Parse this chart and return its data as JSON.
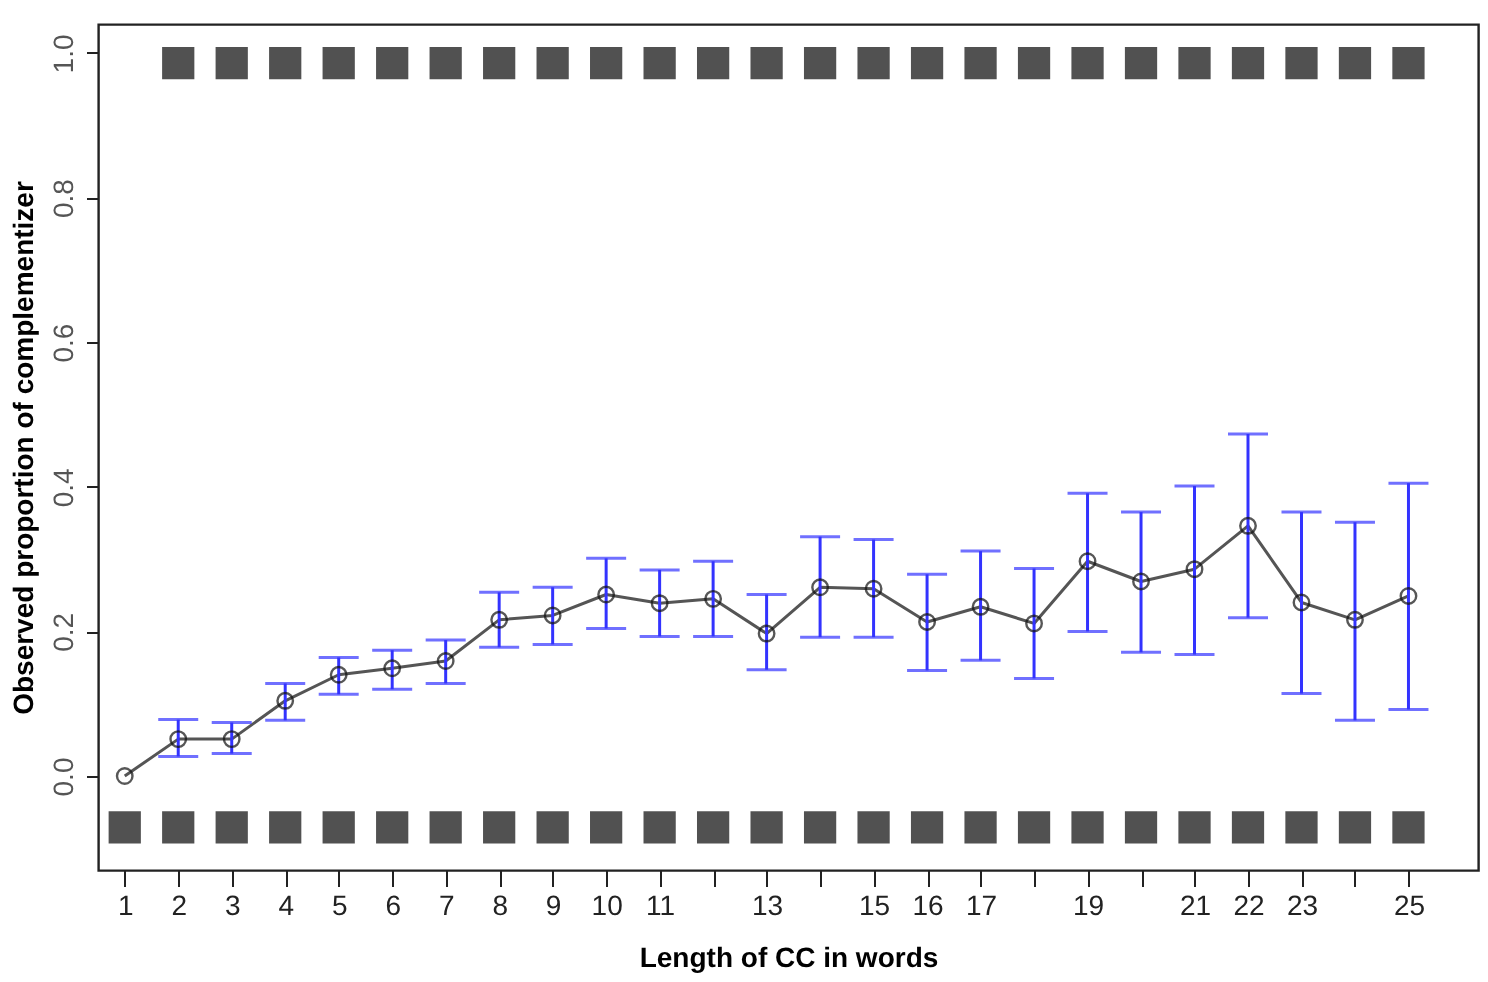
{
  "chart_data": {
    "type": "line",
    "xlabel": "Length of CC in words",
    "ylabel": "Observed proportion of complementizer",
    "xlim": [
      0.5,
      26.3
    ],
    "ylim": [
      -0.13,
      1.04
    ],
    "xticks": [
      1,
      2,
      3,
      4,
      5,
      6,
      7,
      8,
      9,
      10,
      11,
      {
        "value": 12,
        "label": null
      },
      13,
      {
        "value": 14,
        "label": null
      },
      15,
      16,
      17,
      {
        "value": 18,
        "label": null
      },
      19,
      {
        "value": 20,
        "label": null
      },
      21,
      22,
      23,
      {
        "value": 24,
        "label": null
      },
      25
    ],
    "yticks": [
      {
        "value": 0,
        "label": "0.0"
      },
      0.2,
      0.4,
      0.6,
      0.8,
      {
        "value": 1,
        "label": "1.0"
      }
    ],
    "grid": false,
    "series": [
      {
        "color": "#555555",
        "marker": "circle",
        "line_style": "solid",
        "x": [
          1,
          2,
          3,
          4,
          5,
          6,
          7,
          8,
          9,
          10,
          11,
          12,
          13,
          14,
          15,
          16,
          17,
          18,
          19,
          20,
          21,
          22,
          23,
          24,
          25
        ],
        "values": [
          0.0,
          0.051,
          0.051,
          0.104,
          0.14,
          0.149,
          0.159,
          0.216,
          0.222,
          0.251,
          0.239,
          0.245,
          0.197,
          0.261,
          0.259,
          0.213,
          0.234,
          0.211,
          0.297,
          0.269,
          0.286,
          0.346,
          0.24,
          0.216,
          0.249
        ],
        "errors": [
          null,
          [
            0.027,
            0.078
          ],
          [
            0.031,
            0.074
          ],
          [
            0.077,
            0.128
          ],
          [
            0.113,
            0.164
          ],
          [
            0.12,
            0.174
          ],
          [
            0.128,
            0.188
          ],
          [
            0.178,
            0.254
          ],
          [
            0.182,
            0.261
          ],
          [
            0.204,
            0.301
          ],
          [
            0.193,
            0.285
          ],
          [
            0.193,
            0.297
          ],
          [
            0.147,
            0.251
          ],
          [
            0.192,
            0.331
          ],
          [
            0.192,
            0.327
          ],
          [
            0.146,
            0.279
          ],
          [
            0.16,
            0.311
          ],
          [
            0.135,
            0.287
          ],
          [
            0.2,
            0.391
          ],
          [
            0.171,
            0.365
          ],
          [
            0.168,
            0.401
          ],
          [
            0.219,
            0.473
          ],
          [
            0.114,
            0.365
          ],
          [
            0.077,
            0.351
          ],
          [
            0.092,
            0.405
          ]
        ]
      },
      {
        "type": "scatter",
        "color": "#333333",
        "marker": "square",
        "x": [
          1,
          2,
          3,
          4,
          5,
          6,
          7,
          8,
          9,
          10,
          11,
          12,
          13,
          14,
          15,
          16,
          17,
          18,
          19,
          20,
          21,
          22,
          23,
          24,
          25
        ],
        "values": [
          -0.071,
          -0.071,
          -0.071,
          -0.071,
          -0.071,
          -0.071,
          -0.071,
          -0.071,
          -0.071,
          -0.071,
          -0.071,
          -0.071,
          -0.071,
          -0.071,
          -0.071,
          -0.071,
          -0.071,
          -0.071,
          -0.071,
          -0.071,
          -0.071,
          -0.071,
          -0.071,
          -0.071,
          -0.071
        ]
      },
      {
        "type": "scatter",
        "color": "#333333",
        "marker": "square",
        "x": [
          2,
          3,
          4,
          5,
          6,
          7,
          8,
          9,
          10,
          11,
          12,
          13,
          14,
          15,
          16,
          17,
          18,
          19,
          20,
          21,
          22,
          23,
          24,
          25
        ],
        "values": [
          0.986,
          0.986,
          0.986,
          0.986,
          0.986,
          0.986,
          0.986,
          0.986,
          0.986,
          0.986,
          0.986,
          0.986,
          0.986,
          0.986,
          0.986,
          0.986,
          0.986,
          0.986,
          0.986,
          0.986,
          0.986,
          0.986,
          0.986,
          0.986
        ]
      }
    ]
  }
}
